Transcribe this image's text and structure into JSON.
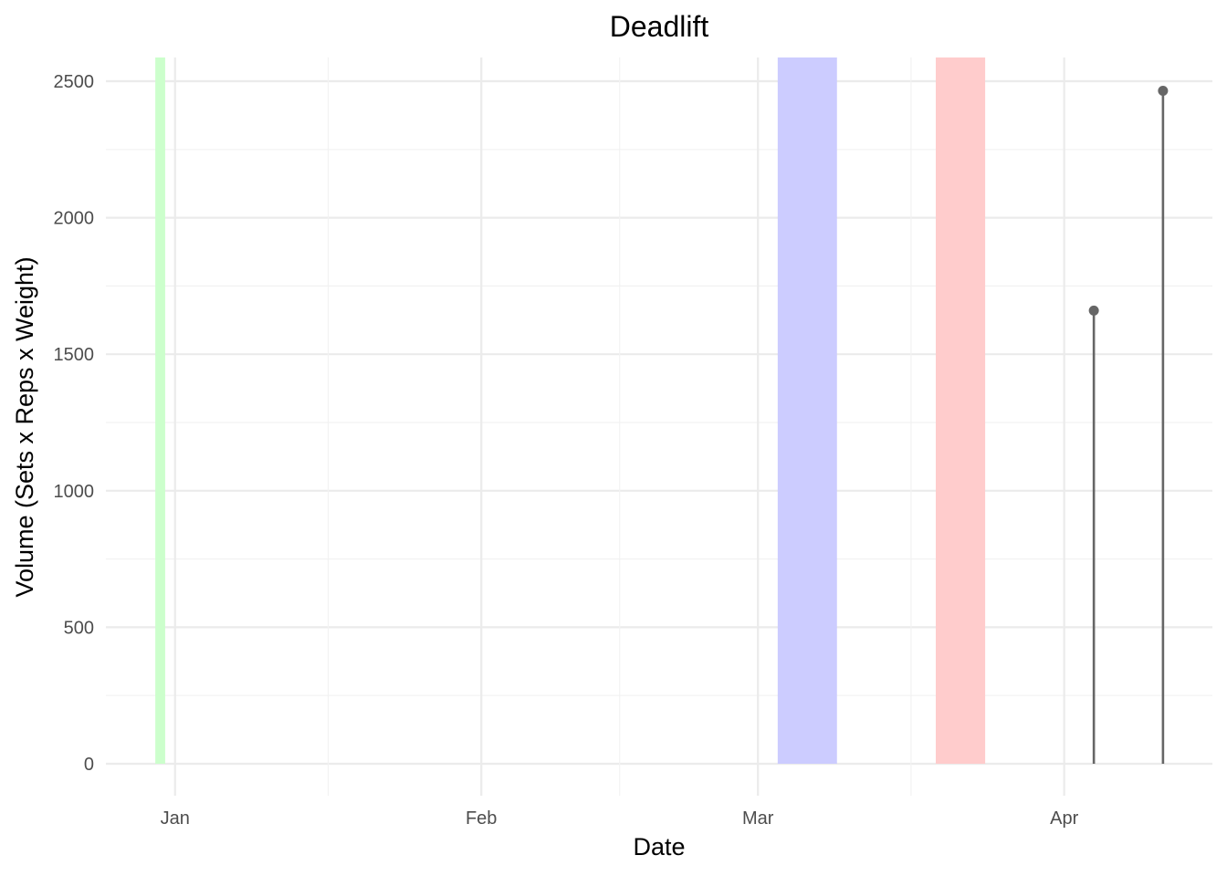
{
  "chart_data": {
    "type": "bar",
    "title": "Deadlift",
    "xlabel": "Date",
    "ylabel": "Volume (Sets x Reps x Weight)",
    "x_ticks": [
      {
        "label": "Jan",
        "date": "2025-01-01"
      },
      {
        "label": "Feb",
        "date": "2025-02-01"
      },
      {
        "label": "Mar",
        "date": "2025-03-01"
      },
      {
        "label": "Apr",
        "date": "2025-04-01"
      }
    ],
    "xlim": [
      "2024-12-25",
      "2025-04-16"
    ],
    "ylim": [
      0,
      2600
    ],
    "y_ticks": [
      0,
      500,
      1000,
      1500,
      2000,
      2500
    ],
    "grid": true,
    "shaded_periods": [
      {
        "start": "2024-12-30",
        "end": "2024-12-31",
        "color": "#ccffcc"
      },
      {
        "start": "2025-03-03",
        "end": "2025-03-09",
        "color": "#ccccff"
      },
      {
        "start": "2025-03-19",
        "end": "2025-03-24",
        "color": "#ffcccc"
      }
    ],
    "series": [
      {
        "points": [
          {
            "x": "2025-04-04",
            "y": 1660
          },
          {
            "x": "2025-04-11",
            "y": 2465
          }
        ],
        "color": "#666666"
      }
    ]
  }
}
